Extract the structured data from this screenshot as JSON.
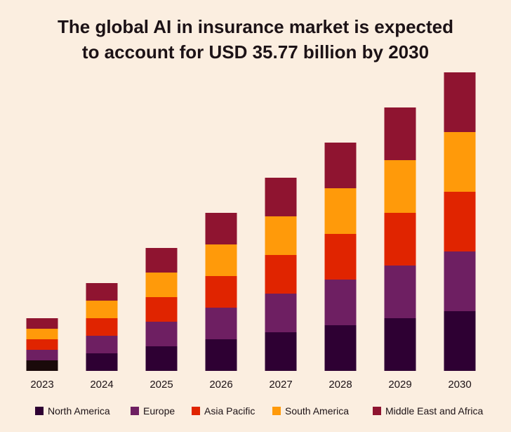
{
  "title": {
    "line1": "The global AI in insurance market is expected",
    "line2": "to account for USD 35.77 billion by 2030"
  },
  "chart_data": {
    "type": "bar",
    "stacked": true,
    "categories": [
      "2023",
      "2024",
      "2025",
      "2026",
      "2027",
      "2028",
      "2029",
      "2030"
    ],
    "series": [
      {
        "name": "North America",
        "color": "#2e0033",
        "values": [
          15,
          25,
          35,
          45,
          55,
          65,
          75,
          85
        ]
      },
      {
        "name": "Europe",
        "color": "#6e1f62",
        "values": [
          15,
          25,
          35,
          45,
          55,
          65,
          75,
          85
        ]
      },
      {
        "name": "Asia Pacific",
        "color": "#e02400",
        "values": [
          15,
          25,
          35,
          45,
          55,
          65,
          75,
          85
        ]
      },
      {
        "name": "South America",
        "color": "#ff9a0a",
        "values": [
          15,
          25,
          35,
          45,
          55,
          65,
          75,
          85
        ]
      },
      {
        "name": "Middle East and Africa",
        "color": "#8f1430",
        "values": [
          15,
          25,
          35,
          45,
          55,
          65,
          75,
          85
        ]
      }
    ],
    "ylim": [
      0,
      425
    ],
    "grid": false,
    "legend_position": "bottom"
  }
}
